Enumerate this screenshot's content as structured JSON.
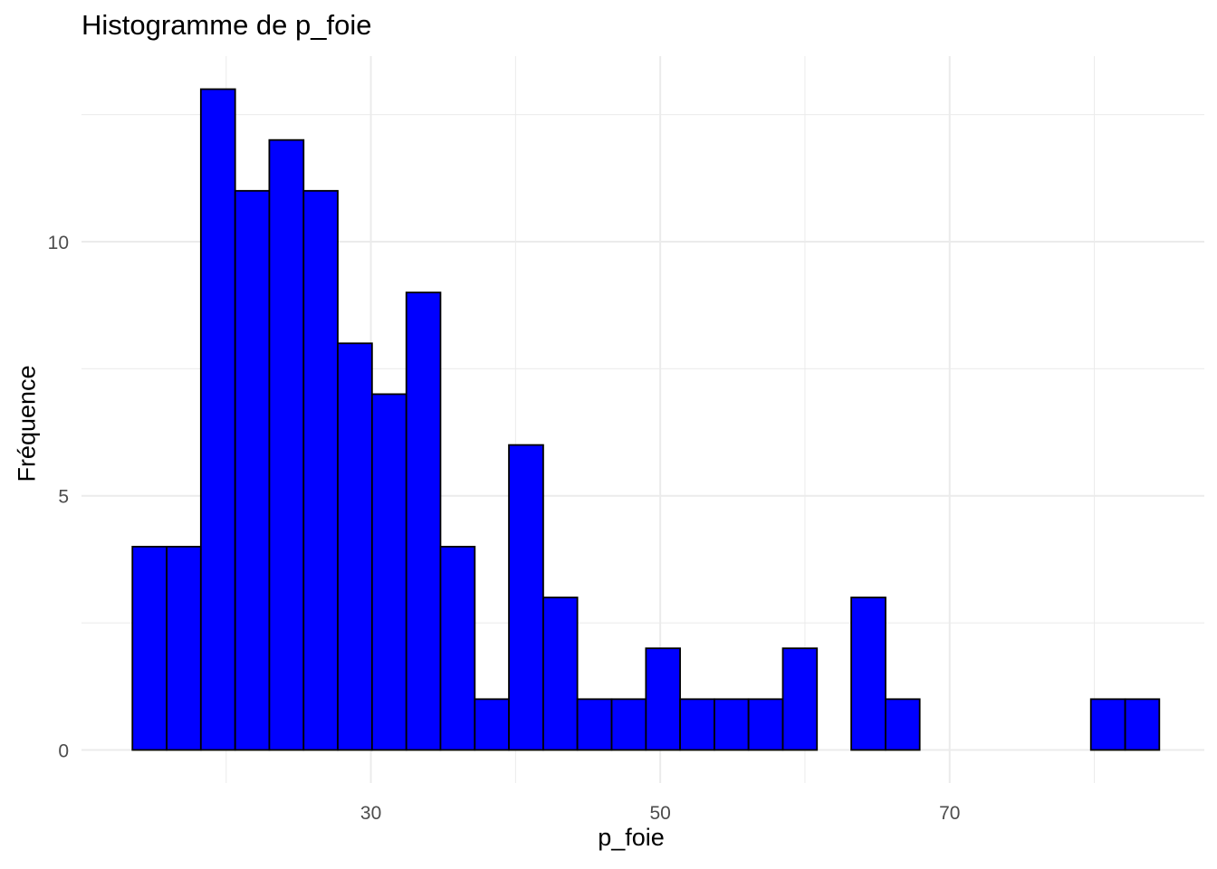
{
  "chart_data": {
    "type": "bar",
    "title": "Histogramme de p_foie",
    "xlabel": "p_foie",
    "ylabel": "Fréquence",
    "bin_width": 2.3656,
    "bins": [
      {
        "x_start": 13.52,
        "x_end": 15.89,
        "count": 4
      },
      {
        "x_start": 15.89,
        "x_end": 18.25,
        "count": 4
      },
      {
        "x_start": 18.25,
        "x_end": 20.62,
        "count": 13
      },
      {
        "x_start": 20.62,
        "x_end": 22.98,
        "count": 11
      },
      {
        "x_start": 22.98,
        "x_end": 25.35,
        "count": 12
      },
      {
        "x_start": 25.35,
        "x_end": 27.71,
        "count": 11
      },
      {
        "x_start": 27.71,
        "x_end": 30.08,
        "count": 8
      },
      {
        "x_start": 30.08,
        "x_end": 32.45,
        "count": 7
      },
      {
        "x_start": 32.45,
        "x_end": 34.81,
        "count": 9
      },
      {
        "x_start": 34.81,
        "x_end": 37.18,
        "count": 4
      },
      {
        "x_start": 37.18,
        "x_end": 39.54,
        "count": 1
      },
      {
        "x_start": 39.54,
        "x_end": 41.91,
        "count": 6
      },
      {
        "x_start": 41.91,
        "x_end": 44.27,
        "count": 3
      },
      {
        "x_start": 44.27,
        "x_end": 46.64,
        "count": 1
      },
      {
        "x_start": 46.64,
        "x_end": 49.01,
        "count": 1
      },
      {
        "x_start": 49.01,
        "x_end": 51.37,
        "count": 2
      },
      {
        "x_start": 51.37,
        "x_end": 53.74,
        "count": 1
      },
      {
        "x_start": 53.74,
        "x_end": 56.1,
        "count": 1
      },
      {
        "x_start": 56.1,
        "x_end": 58.47,
        "count": 1
      },
      {
        "x_start": 58.47,
        "x_end": 60.83,
        "count": 2
      },
      {
        "x_start": 60.83,
        "x_end": 63.2,
        "count": 0
      },
      {
        "x_start": 63.2,
        "x_end": 65.57,
        "count": 3
      },
      {
        "x_start": 65.57,
        "x_end": 67.93,
        "count": 1
      },
      {
        "x_start": 67.93,
        "x_end": 70.3,
        "count": 0
      },
      {
        "x_start": 70.3,
        "x_end": 72.66,
        "count": 0
      },
      {
        "x_start": 72.66,
        "x_end": 75.03,
        "count": 0
      },
      {
        "x_start": 75.03,
        "x_end": 77.39,
        "count": 0
      },
      {
        "x_start": 77.39,
        "x_end": 79.76,
        "count": 0
      },
      {
        "x_start": 79.76,
        "x_end": 82.13,
        "count": 1
      },
      {
        "x_start": 82.13,
        "x_end": 84.49,
        "count": 1
      }
    ],
    "x_ticks": [
      "30",
      "50",
      "70"
    ],
    "y_ticks": [
      "0",
      "5",
      "10"
    ],
    "xlim": [
      10.0,
      87.6
    ],
    "ylim": [
      -0.65,
      13.65
    ],
    "grid": true,
    "legend": "none",
    "bar_fill": "#0000ff",
    "bar_outline": "#000000",
    "grid_color": "#ebebeb",
    "tick_label_color": "#4d4d4d"
  }
}
